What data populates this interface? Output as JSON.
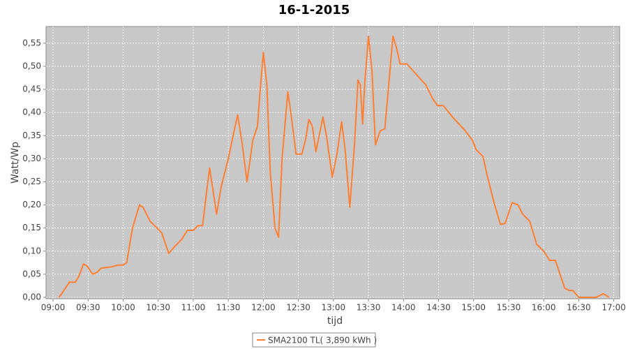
{
  "chart_data": {
    "type": "line",
    "title": "16-1-2015",
    "x_label": "tijd",
    "y_label": "Watt/Wp",
    "x": [
      "09:05",
      "09:08",
      "09:14",
      "09:19",
      "09:22",
      "09:26",
      "09:29",
      "09:34",
      "09:38",
      "09:41",
      "09:50",
      "09:56",
      "10:00",
      "10:03",
      "10:08",
      "10:14",
      "10:17",
      "10:23",
      "10:29",
      "10:33",
      "10:39",
      "10:44",
      "10:50",
      "10:55",
      "11:00",
      "11:04",
      "11:08",
      "11:11",
      "11:14",
      "11:17",
      "11:20",
      "11:24",
      "11:30",
      "11:35",
      "11:38",
      "11:42",
      "11:46",
      "11:51",
      "11:55",
      "11:57",
      "12:00",
      "12:03",
      "12:06",
      "12:10",
      "12:13",
      "12:16",
      "12:21",
      "12:24",
      "12:28",
      "12:33",
      "12:36",
      "12:39",
      "12:42",
      "12:45",
      "12:51",
      "12:54",
      "12:59",
      "13:03",
      "13:07",
      "13:10",
      "13:14",
      "13:18",
      "13:21",
      "13:23",
      "13:25",
      "13:27",
      "13:30",
      "13:33",
      "13:36",
      "13:40",
      "13:44",
      "13:47",
      "13:51",
      "13:54",
      "13:57",
      "14:03",
      "14:10",
      "14:19",
      "14:25",
      "14:29",
      "14:34",
      "14:42",
      "14:53",
      "14:59",
      "15:02",
      "15:08",
      "15:12",
      "15:18",
      "15:23",
      "15:27",
      "15:33",
      "15:38",
      "15:42",
      "15:48",
      "15:54",
      "16:00",
      "16:05",
      "16:10",
      "16:14",
      "16:18",
      "16:22",
      "16:25",
      "16:30",
      "16:45",
      "16:51",
      "16:56"
    ],
    "series": [
      {
        "name": "SMA2100 TL( 3,890 kWh )",
        "color": "#ff7f32",
        "values": [
          0.0,
          0.01,
          0.033,
          0.033,
          0.045,
          0.072,
          0.068,
          0.05,
          0.055,
          0.063,
          0.066,
          0.07,
          0.07,
          0.075,
          0.15,
          0.2,
          0.195,
          0.165,
          0.15,
          0.14,
          0.095,
          0.11,
          0.125,
          0.145,
          0.145,
          0.155,
          0.155,
          0.22,
          0.28,
          0.23,
          0.18,
          0.24,
          0.3,
          0.36,
          0.395,
          0.33,
          0.25,
          0.34,
          0.37,
          0.44,
          0.53,
          0.46,
          0.27,
          0.15,
          0.13,
          0.3,
          0.445,
          0.39,
          0.31,
          0.31,
          0.34,
          0.385,
          0.37,
          0.315,
          0.39,
          0.35,
          0.26,
          0.31,
          0.38,
          0.32,
          0.195,
          0.33,
          0.47,
          0.46,
          0.375,
          0.47,
          0.565,
          0.49,
          0.33,
          0.36,
          0.365,
          0.45,
          0.565,
          0.54,
          0.505,
          0.505,
          0.485,
          0.46,
          0.43,
          0.415,
          0.415,
          0.39,
          0.36,
          0.34,
          0.32,
          0.305,
          0.26,
          0.2,
          0.158,
          0.16,
          0.205,
          0.2,
          0.18,
          0.165,
          0.115,
          0.1,
          0.08,
          0.08,
          0.05,
          0.02,
          0.015,
          0.015,
          0.0,
          0.0,
          0.008,
          0.0
        ]
      }
    ],
    "xlim": [
      "08:54",
      "17:05"
    ],
    "xticks": [
      "09:00",
      "09:30",
      "10:00",
      "10:30",
      "11:00",
      "11:30",
      "12:00",
      "12:30",
      "13:00",
      "13:30",
      "14:00",
      "14:30",
      "15:00",
      "15:30",
      "16:00",
      "16:30",
      "17:00"
    ],
    "ylim": [
      -0.003,
      0.586
    ],
    "yticks": [
      {
        "value": 0,
        "label": "0,00"
      },
      {
        "value": 0.05,
        "label": "0,05"
      },
      {
        "value": 0.1,
        "label": "0,10"
      },
      {
        "value": 0.15,
        "label": "0,15"
      },
      {
        "value": 0.2,
        "label": "0,20"
      },
      {
        "value": 0.25,
        "label": "0,25"
      },
      {
        "value": 0.3,
        "label": "0,30"
      },
      {
        "value": 0.35,
        "label": "0,35"
      },
      {
        "value": 0.4,
        "label": "0,40"
      },
      {
        "value": 0.45,
        "label": "0,45"
      },
      {
        "value": 0.5,
        "label": "0,50"
      },
      {
        "value": 0.55,
        "label": "0,55"
      }
    ],
    "grid": true,
    "legend": "bottom",
    "background": "#c8c8c8"
  }
}
